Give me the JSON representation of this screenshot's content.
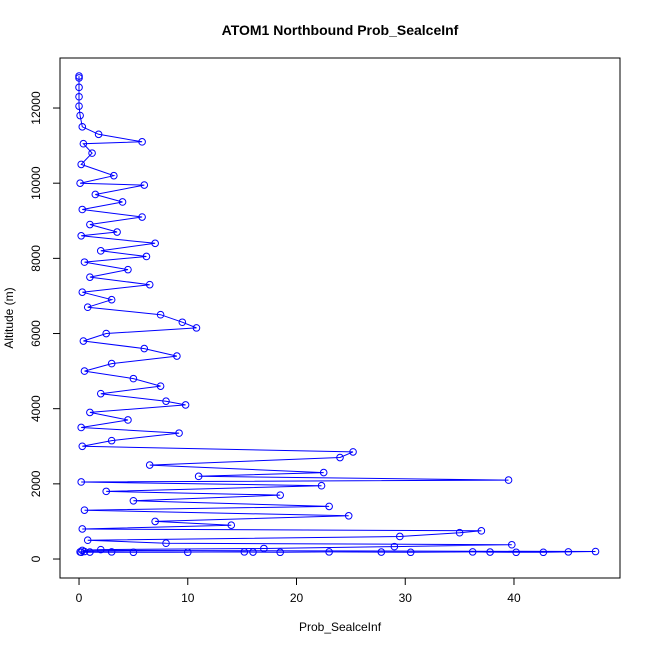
{
  "chart_data": {
    "type": "line",
    "markers": true,
    "title": "ATOM1 Northbound Prob_SealceInf",
    "xlabel": "Prob_SealceInf",
    "ylabel": "Altitude (m)",
    "color": "#0000ff",
    "xlim": [
      -1.75,
      49.75
    ],
    "ylim": [
      -505,
      13331
    ],
    "xticks": [
      0,
      10,
      20,
      30,
      40
    ],
    "yticks": [
      0,
      2000,
      4000,
      6000,
      8000,
      10000,
      12000
    ],
    "x": [
      0,
      0,
      0,
      0,
      0,
      0.1,
      0.3,
      1.8,
      5.8,
      0.4,
      1.2,
      0.2,
      3.2,
      0.1,
      6.0,
      1.5,
      4.0,
      0.3,
      5.8,
      1.0,
      3.5,
      0.2,
      7.0,
      2.0,
      6.2,
      0.5,
      4.5,
      1.0,
      6.5,
      0.3,
      3.0,
      0.8,
      7.5,
      9.5,
      10.8,
      2.5,
      0.4,
      6.0,
      9.0,
      3.0,
      0.5,
      5.0,
      7.5,
      2.0,
      8.0,
      9.8,
      1.0,
      4.5,
      0.2,
      9.2,
      3.0,
      0.3,
      25.2,
      24.0,
      6.5,
      22.5,
      11.0,
      39.5,
      0.2,
      22.3,
      2.5,
      18.5,
      5.0,
      23.0,
      0.5,
      24.8,
      7.0,
      14.0,
      0.3,
      37.0,
      35.0,
      29.5,
      0.8,
      8.0,
      39.8,
      29.0,
      17.0,
      2.0,
      0.3,
      47.5,
      45.0,
      42.7,
      40.2,
      37.8,
      36.2,
      30.5,
      27.8,
      23.0,
      18.5,
      16.0,
      15.2,
      5.0,
      1.0,
      0.1,
      0.5,
      10.0,
      3.0,
      0.2
    ],
    "y": [
      12850,
      12800,
      12550,
      12300,
      12050,
      11800,
      11500,
      11300,
      11100,
      11050,
      10800,
      10500,
      10200,
      10000,
      9950,
      9700,
      9500,
      9300,
      9100,
      8900,
      8700,
      8600,
      8400,
      8200,
      8050,
      7900,
      7700,
      7500,
      7300,
      7100,
      6900,
      6700,
      6500,
      6300,
      6150,
      6000,
      5800,
      5600,
      5400,
      5200,
      5000,
      4800,
      4600,
      4400,
      4200,
      4100,
      3900,
      3700,
      3500,
      3350,
      3150,
      3000,
      2850,
      2700,
      2500,
      2300,
      2200,
      2100,
      2050,
      1950,
      1800,
      1700,
      1550,
      1400,
      1300,
      1150,
      1000,
      900,
      800,
      750,
      700,
      600,
      500,
      420,
      380,
      330,
      280,
      250,
      230,
      200,
      190,
      180,
      180,
      185,
      190,
      180,
      185,
      190,
      180,
      185,
      190,
      180,
      185,
      190,
      200,
      180,
      190,
      180
    ]
  }
}
